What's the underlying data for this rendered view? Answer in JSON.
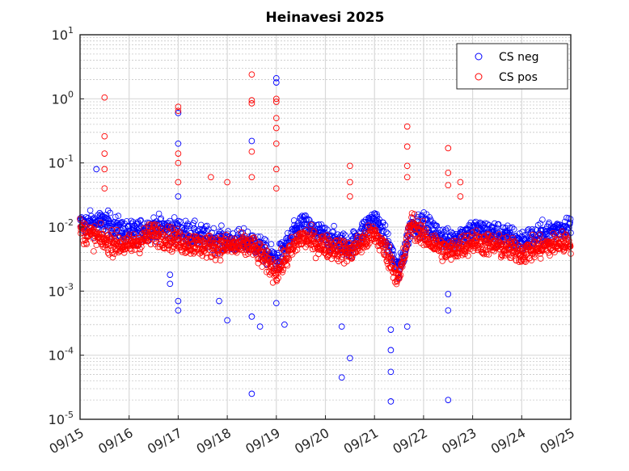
{
  "chart_data": {
    "type": "scatter",
    "title": "Heinavesi 2025",
    "xlabel": "",
    "ylabel": "",
    "y_scale": "log",
    "ylim": [
      1e-05,
      10
    ],
    "xlim": [
      "2025-09-15",
      "2025-09-25"
    ],
    "x_tick_labels": [
      "09/15",
      "09/16",
      "09/17",
      "09/18",
      "09/19",
      "09/20",
      "09/21",
      "09/22",
      "09/23",
      "09/24",
      "09/25"
    ],
    "y_ticks": [
      {
        "base": "10",
        "exp": "-5"
      },
      {
        "base": "10",
        "exp": "-4"
      },
      {
        "base": "10",
        "exp": "-3"
      },
      {
        "base": "10",
        "exp": "-2"
      },
      {
        "base": "10",
        "exp": "-1"
      },
      {
        "base": "10",
        "exp": "0"
      },
      {
        "base": "10",
        "exp": "1"
      }
    ],
    "grid": true,
    "legend_position": "top-right",
    "marker": "open-circle",
    "series": [
      {
        "name": "CS neg",
        "color": "#0000ff",
        "baseline": [
          [
            "2025-09-15 00:00",
            0.011
          ],
          [
            "2025-09-15 12:00",
            0.012
          ],
          [
            "2025-09-16 00:00",
            0.008
          ],
          [
            "2025-09-16 12:00",
            0.01
          ],
          [
            "2025-09-17 00:00",
            0.009
          ],
          [
            "2025-09-17 12:00",
            0.007
          ],
          [
            "2025-09-18 00:00",
            0.006
          ],
          [
            "2025-09-18 12:00",
            0.006
          ],
          [
            "2025-09-19 00:00",
            0.003
          ],
          [
            "2025-09-19 12:00",
            0.011
          ],
          [
            "2025-09-20 00:00",
            0.007
          ],
          [
            "2025-09-20 12:00",
            0.005
          ],
          [
            "2025-09-21 00:00",
            0.014
          ],
          [
            "2025-09-21 06:00",
            0.006
          ],
          [
            "2025-09-21 12:00",
            0.002
          ],
          [
            "2025-09-21 18:00",
            0.011
          ],
          [
            "2025-09-22 00:00",
            0.011
          ],
          [
            "2025-09-22 12:00",
            0.006
          ],
          [
            "2025-09-23 00:00",
            0.009
          ],
          [
            "2025-09-23 12:00",
            0.008
          ],
          [
            "2025-09-24 00:00",
            0.006
          ],
          [
            "2025-09-24 12:00",
            0.008
          ],
          [
            "2025-09-25 00:00",
            0.011
          ]
        ],
        "outliers": [
          [
            "2025-09-15 08:00",
            0.08
          ],
          [
            "2025-09-16 20:00",
            0.0013
          ],
          [
            "2025-09-16 20:00",
            0.0018
          ],
          [
            "2025-09-17 00:00",
            0.6
          ],
          [
            "2025-09-17 00:00",
            0.2
          ],
          [
            "2025-09-17 00:00",
            0.03
          ],
          [
            "2025-09-17 00:00",
            0.0005
          ],
          [
            "2025-09-17 00:00",
            0.0007
          ],
          [
            "2025-09-17 20:00",
            0.0007
          ],
          [
            "2025-09-18 00:00",
            0.00035
          ],
          [
            "2025-09-18 12:00",
            0.22
          ],
          [
            "2025-09-18 12:00",
            2.5e-05
          ],
          [
            "2025-09-18 12:00",
            0.0004
          ],
          [
            "2025-09-18 16:00",
            0.00028
          ],
          [
            "2025-09-19 00:00",
            2.1
          ],
          [
            "2025-09-19 00:00",
            1.8
          ],
          [
            "2025-09-19 00:00",
            0.00065
          ],
          [
            "2025-09-19 04:00",
            0.0003
          ],
          [
            "2025-09-20 08:00",
            0.00028
          ],
          [
            "2025-09-20 08:00",
            4.5e-05
          ],
          [
            "2025-09-20 12:00",
            9e-05
          ],
          [
            "2025-09-21 08:00",
            1.9e-05
          ],
          [
            "2025-09-21 08:00",
            5.5e-05
          ],
          [
            "2025-09-21 08:00",
            0.00012
          ],
          [
            "2025-09-21 08:00",
            0.00025
          ],
          [
            "2025-09-21 16:00",
            0.00028
          ],
          [
            "2025-09-22 12:00",
            2e-05
          ],
          [
            "2025-09-22 12:00",
            0.0005
          ],
          [
            "2025-09-22 12:00",
            0.0009
          ]
        ]
      },
      {
        "name": "CS pos",
        "color": "#ff0000",
        "baseline": [
          [
            "2025-09-15 00:00",
            0.009
          ],
          [
            "2025-09-15 12:00",
            0.006
          ],
          [
            "2025-09-16 00:00",
            0.005
          ],
          [
            "2025-09-16 12:00",
            0.008
          ],
          [
            "2025-09-17 00:00",
            0.006
          ],
          [
            "2025-09-17 12:00",
            0.005
          ],
          [
            "2025-09-18 00:00",
            0.005
          ],
          [
            "2025-09-18 12:00",
            0.005
          ],
          [
            "2025-09-19 00:00",
            0.002
          ],
          [
            "2025-09-19 12:00",
            0.007
          ],
          [
            "2025-09-20 00:00",
            0.005
          ],
          [
            "2025-09-20 12:00",
            0.004
          ],
          [
            "2025-09-21 00:00",
            0.008
          ],
          [
            "2025-09-21 06:00",
            0.004
          ],
          [
            "2025-09-21 12:00",
            0.0015
          ],
          [
            "2025-09-21 18:00",
            0.012
          ],
          [
            "2025-09-22 00:00",
            0.007
          ],
          [
            "2025-09-22 12:00",
            0.004
          ],
          [
            "2025-09-23 00:00",
            0.006
          ],
          [
            "2025-09-23 12:00",
            0.005
          ],
          [
            "2025-09-24 00:00",
            0.004
          ],
          [
            "2025-09-24 12:00",
            0.005
          ],
          [
            "2025-09-25 00:00",
            0.006
          ]
        ],
        "outliers": [
          [
            "2025-09-15 12:00",
            1.05
          ],
          [
            "2025-09-15 12:00",
            0.26
          ],
          [
            "2025-09-15 12:00",
            0.14
          ],
          [
            "2025-09-15 12:00",
            0.08
          ],
          [
            "2025-09-15 12:00",
            0.04
          ],
          [
            "2025-09-17 00:00",
            0.75
          ],
          [
            "2025-09-17 00:00",
            0.65
          ],
          [
            "2025-09-17 00:00",
            0.14
          ],
          [
            "2025-09-17 00:00",
            0.1
          ],
          [
            "2025-09-17 00:00",
            0.05
          ],
          [
            "2025-09-17 16:00",
            0.06
          ],
          [
            "2025-09-18 00:00",
            0.05
          ],
          [
            "2025-09-18 12:00",
            2.4
          ],
          [
            "2025-09-18 12:00",
            0.95
          ],
          [
            "2025-09-18 12:00",
            0.85
          ],
          [
            "2025-09-18 12:00",
            0.15
          ],
          [
            "2025-09-18 12:00",
            0.06
          ],
          [
            "2025-09-19 00:00",
            1.0
          ],
          [
            "2025-09-19 00:00",
            0.9
          ],
          [
            "2025-09-19 00:00",
            0.5
          ],
          [
            "2025-09-19 00:00",
            0.35
          ],
          [
            "2025-09-19 00:00",
            0.2
          ],
          [
            "2025-09-19 00:00",
            0.08
          ],
          [
            "2025-09-19 00:00",
            0.04
          ],
          [
            "2025-09-20 12:00",
            0.09
          ],
          [
            "2025-09-20 12:00",
            0.05
          ],
          [
            "2025-09-20 12:00",
            0.03
          ],
          [
            "2025-09-21 16:00",
            0.37
          ],
          [
            "2025-09-21 16:00",
            0.18
          ],
          [
            "2025-09-21 16:00",
            0.09
          ],
          [
            "2025-09-21 16:00",
            0.06
          ],
          [
            "2025-09-22 12:00",
            0.17
          ],
          [
            "2025-09-22 12:00",
            0.07
          ],
          [
            "2025-09-22 12:00",
            0.045
          ],
          [
            "2025-09-22 18:00",
            0.05
          ],
          [
            "2025-09-22 18:00",
            0.03
          ]
        ]
      }
    ]
  }
}
